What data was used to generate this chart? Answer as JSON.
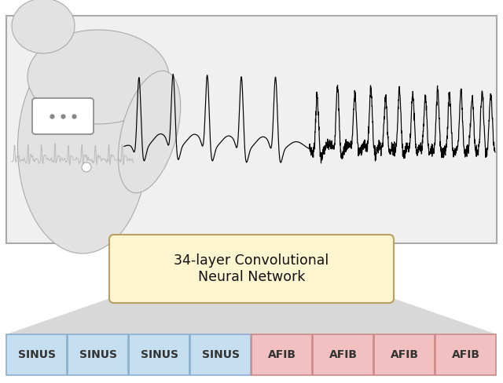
{
  "cnn_box_text": "34-layer Convolutional\nNeural Network",
  "cnn_box_color": "#fdf5d0",
  "cnn_box_edgecolor": "#b8a060",
  "sinus_labels": [
    "SINUS",
    "SINUS",
    "SINUS",
    "SINUS"
  ],
  "afib_labels": [
    "AFIB",
    "AFIB",
    "AFIB",
    "AFIB"
  ],
  "sinus_color": "#c5dff0",
  "afib_color": "#f2c0c0",
  "sinus_edge": "#8ab0cc",
  "afib_edge": "#cc8888",
  "bg_color": "#ffffff",
  "ecg_panel_bg": "#f0f0f0",
  "ecg_panel_edge": "#aaaaaa",
  "trap_color": "#d0d0d0",
  "trap_edge": "#bbbbbb",
  "trap2_color": "#d8d8d8",
  "trap2_edge": "#bbbbbb",
  "body_fill": "#e2e2e2",
  "body_edge": "#aaaaaa",
  "device_fill": "#ffffff",
  "device_edge": "#888888",
  "ecg_color": "#000000",
  "body_ecg_color": "#999999"
}
